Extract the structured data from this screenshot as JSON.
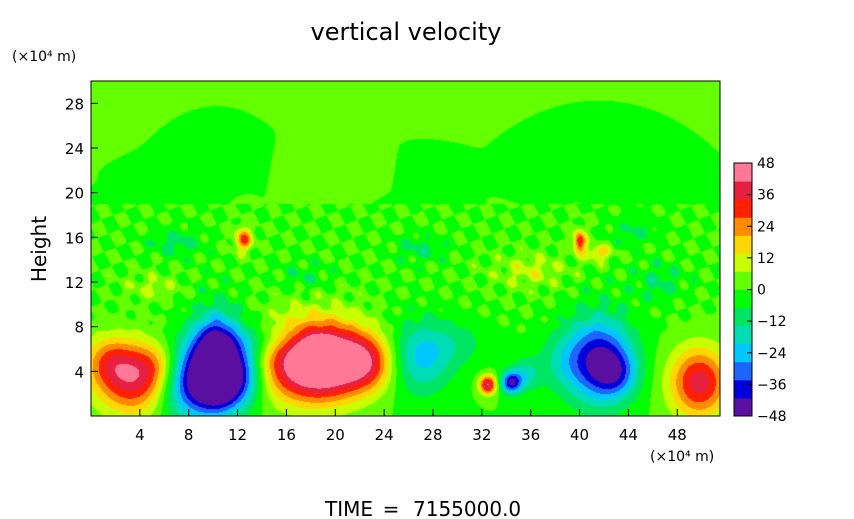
{
  "chart_data": {
    "type": "heatmap",
    "title": "vertical velocity",
    "xlabel": "",
    "ylabel": "Height",
    "x_unit": "(×10⁴ m)",
    "y_unit": "(×10⁴ m)",
    "xlim": [
      0,
      51.5
    ],
    "ylim": [
      0,
      30
    ],
    "x_ticks": [
      4,
      8,
      12,
      16,
      20,
      24,
      28,
      32,
      36,
      40,
      44,
      48
    ],
    "y_ticks": [
      4,
      8,
      12,
      16,
      20,
      24,
      28
    ],
    "colorbar": {
      "range": [
        -48,
        48
      ],
      "ticks": [
        48,
        36,
        24,
        12,
        0,
        -12,
        -24,
        -36,
        -48
      ],
      "colors": [
        "#5a0fa0",
        "#0000dc",
        "#1e64ff",
        "#00c8ff",
        "#00dcb4",
        "#00e664",
        "#00ff00",
        "#64ff00",
        "#c8ff00",
        "#ffd700",
        "#ff8c00",
        "#ff2000",
        "#e62040",
        "#ff7896"
      ]
    },
    "features": [
      {
        "x": 3.5,
        "y": 3.2,
        "sx": 2.2,
        "sy": 2.2,
        "value": 36
      },
      {
        "x": 1.5,
        "y": 5.0,
        "sx": 1.5,
        "sy": 1.6,
        "value": 18
      },
      {
        "x": 5.5,
        "y": 4.6,
        "sx": 1.4,
        "sy": 1.5,
        "value": 14
      },
      {
        "x": 8.0,
        "y": 3.2,
        "sx": 1.8,
        "sy": 2.5,
        "value": -38
      },
      {
        "x": 10.3,
        "y": 5.3,
        "sx": 1.3,
        "sy": 2.6,
        "value": -52
      },
      {
        "x": 11.0,
        "y": 2.8,
        "sx": 1.6,
        "sy": 1.8,
        "value": -32
      },
      {
        "x": 12.8,
        "y": 4.5,
        "sx": 1.2,
        "sy": 2.0,
        "value": -20
      },
      {
        "x": 17.0,
        "y": 4.8,
        "sx": 2.6,
        "sy": 2.4,
        "value": 38
      },
      {
        "x": 19.5,
        "y": 5.0,
        "sx": 2.2,
        "sy": 2.4,
        "value": 40
      },
      {
        "x": 18.6,
        "y": 5.8,
        "sx": 0.9,
        "sy": 0.9,
        "value": 18
      },
      {
        "x": 22.6,
        "y": 4.8,
        "sx": 1.6,
        "sy": 1.8,
        "value": 30
      },
      {
        "x": 27.0,
        "y": 5.2,
        "sx": 1.8,
        "sy": 2.3,
        "value": -22
      },
      {
        "x": 12.5,
        "y": 15.8,
        "sx": 0.5,
        "sy": 0.7,
        "value": 30
      },
      {
        "x": 32.5,
        "y": 2.8,
        "sx": 0.5,
        "sy": 0.6,
        "value": 42
      },
      {
        "x": 34.4,
        "y": 3.0,
        "sx": 0.6,
        "sy": 0.7,
        "value": -40
      },
      {
        "x": 35.6,
        "y": 3.7,
        "sx": 0.8,
        "sy": 1.0,
        "value": -16
      },
      {
        "x": 41.6,
        "y": 5.0,
        "sx": 1.9,
        "sy": 2.7,
        "value": -42
      },
      {
        "x": 43.0,
        "y": 3.8,
        "sx": 1.2,
        "sy": 1.4,
        "value": -18
      },
      {
        "x": 40.0,
        "y": 15.6,
        "sx": 0.35,
        "sy": 0.7,
        "value": 36
      },
      {
        "x": 41.6,
        "y": 14.6,
        "sx": 0.7,
        "sy": 0.5,
        "value": 18
      },
      {
        "x": 49.8,
        "y": 3.0,
        "sx": 1.7,
        "sy": 2.2,
        "value": 38
      },
      {
        "x": 38.5,
        "y": 4.8,
        "sx": 1.5,
        "sy": 1.8,
        "value": -10
      },
      {
        "x": 14.5,
        "y": 6.8,
        "sx": 3.0,
        "sy": 1.0,
        "value": -10
      },
      {
        "x": 30.0,
        "y": 6.5,
        "sx": 2.0,
        "sy": 1.5,
        "value": -8
      },
      {
        "x": 7.0,
        "y": 15.5,
        "sx": 1.5,
        "sy": 0.8,
        "value": -10
      },
      {
        "x": 27.0,
        "y": 15.0,
        "sx": 1.4,
        "sy": 0.8,
        "value": -9
      },
      {
        "x": 46.5,
        "y": 12.0,
        "sx": 1.4,
        "sy": 1.2,
        "value": -9
      },
      {
        "x": 44.5,
        "y": 16.5,
        "sx": 1.3,
        "sy": 0.8,
        "value": -8
      },
      {
        "x": 17.5,
        "y": 12.5,
        "sx": 1.4,
        "sy": 0.8,
        "value": -7
      },
      {
        "x": 36.0,
        "y": 13.0,
        "sx": 2.0,
        "sy": 1.0,
        "value": 10
      },
      {
        "x": 5.0,
        "y": 11.5,
        "sx": 1.5,
        "sy": 0.8,
        "value": 8
      }
    ],
    "background": {
      "value": 0,
      "band": [
        7,
        19
      ],
      "band_amplitude": 7
    }
  },
  "footer": {
    "time_label": "TIME",
    "time_equals": "=",
    "time_value": "7155000.0"
  }
}
